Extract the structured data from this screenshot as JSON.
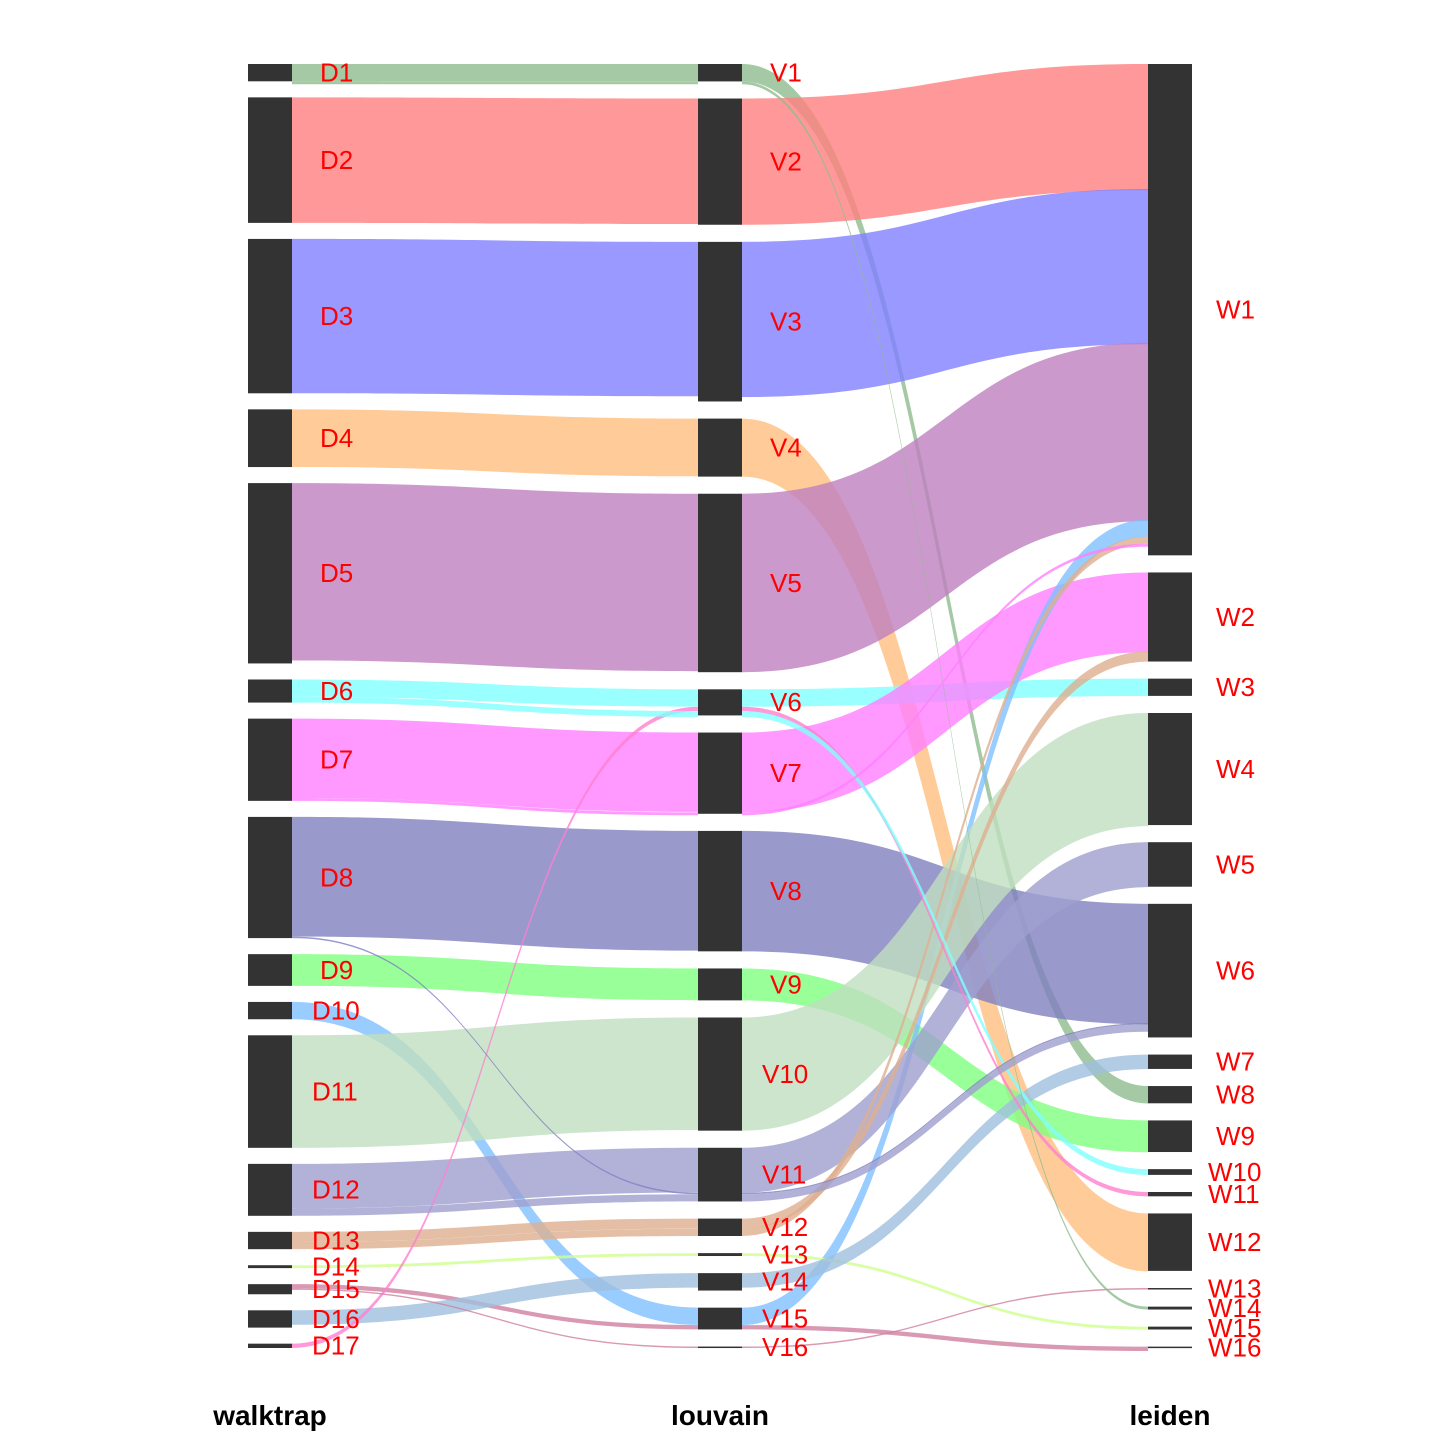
{
  "axes": [
    {
      "name": "walktrap"
    },
    {
      "name": "louvain"
    },
    {
      "name": "leiden"
    }
  ],
  "nodes": {
    "walktrap": [
      {
        "id": "D1",
        "size": 12
      },
      {
        "id": "D2",
        "size": 87
      },
      {
        "id": "D3",
        "size": 107
      },
      {
        "id": "D4",
        "size": 40
      },
      {
        "id": "D5",
        "size": 125
      },
      {
        "id": "D6",
        "size": 16
      },
      {
        "id": "D7",
        "size": 57
      },
      {
        "id": "D8",
        "size": 84
      },
      {
        "id": "D9",
        "size": 22
      },
      {
        "id": "D10",
        "size": 12
      },
      {
        "id": "D11",
        "size": 78
      },
      {
        "id": "D12",
        "size": 36
      },
      {
        "id": "D13",
        "size": 12
      },
      {
        "id": "D14",
        "size": 2
      },
      {
        "id": "D15",
        "size": 7
      },
      {
        "id": "D16",
        "size": 12
      },
      {
        "id": "D17",
        "size": 3
      }
    ],
    "louvain": [
      {
        "id": "V1",
        "size": 12
      },
      {
        "id": "V2",
        "size": 87
      },
      {
        "id": "V3",
        "size": 110
      },
      {
        "id": "V4",
        "size": 40
      },
      {
        "id": "V5",
        "size": 123
      },
      {
        "id": "V6",
        "size": 18
      },
      {
        "id": "V7",
        "size": 56
      },
      {
        "id": "V8",
        "size": 83
      },
      {
        "id": "V9",
        "size": 22
      },
      {
        "id": "V10",
        "size": 78
      },
      {
        "id": "V11",
        "size": 37
      },
      {
        "id": "V12",
        "size": 12
      },
      {
        "id": "V13",
        "size": 2
      },
      {
        "id": "V14",
        "size": 12
      },
      {
        "id": "V15",
        "size": 15
      },
      {
        "id": "V16",
        "size": 1
      }
    ],
    "leiden": [
      {
        "id": "W1",
        "size": 342
      },
      {
        "id": "W2",
        "size": 62
      },
      {
        "id": "W3",
        "size": 12
      },
      {
        "id": "W4",
        "size": 78
      },
      {
        "id": "W5",
        "size": 31
      },
      {
        "id": "W6",
        "size": 93
      },
      {
        "id": "W7",
        "size": 10
      },
      {
        "id": "W8",
        "size": 12
      },
      {
        "id": "W9",
        "size": 22
      },
      {
        "id": "W10",
        "size": 4
      },
      {
        "id": "W11",
        "size": 3
      },
      {
        "id": "W12",
        "size": 40
      },
      {
        "id": "W13",
        "size": 1
      },
      {
        "id": "W14",
        "size": 2
      },
      {
        "id": "W15",
        "size": 2
      },
      {
        "id": "W16",
        "size": 1
      }
    ]
  },
  "flows": [
    {
      "from": "D1",
      "mid": "V1",
      "to": "W8",
      "value": 12,
      "color": "#8fbc8f"
    },
    {
      "from": "D2",
      "mid": "V2",
      "to": "W1",
      "value": 87,
      "color": "#ff7f7f"
    },
    {
      "from": "D3",
      "mid": "V3",
      "to": "W1",
      "value": 107,
      "color": "#7f7fff"
    },
    {
      "from": "D4",
      "mid": "V4",
      "to": "W12",
      "value": 40,
      "color": "#ffbf7f"
    },
    {
      "from": "D5",
      "mid": "V5",
      "to": "W1",
      "value": 123,
      "color": "#bf7fbf"
    },
    {
      "from": "D6",
      "mid": "V6",
      "to": "W3",
      "value": 12,
      "color": "#7fffff"
    },
    {
      "from": "D7",
      "mid": "V7",
      "to": "W2",
      "value": 55,
      "color": "#ff7fff"
    },
    {
      "from": "D8",
      "mid": "V8",
      "to": "W6",
      "value": 83,
      "color": "#7f7fbf"
    },
    {
      "from": "D9",
      "mid": "V9",
      "to": "W9",
      "value": 22,
      "color": "#7fff7f"
    },
    {
      "from": "D10",
      "mid": "V15",
      "to": "W1",
      "value": 12,
      "color": "#7fbfff"
    },
    {
      "from": "D11",
      "mid": "V10",
      "to": "W4",
      "value": 78,
      "color": "#bfdfbf"
    },
    {
      "from": "D12",
      "mid": "V11",
      "to": "W5",
      "value": 31,
      "color": "#9f9fcf"
    },
    {
      "from": "D13",
      "mid": "V12",
      "to": "W2",
      "value": 7,
      "color": "#dfaf8f"
    },
    {
      "from": "D13",
      "mid": "V12",
      "to": "W1",
      "value": 5,
      "color": "#dfaf8f"
    },
    {
      "from": "D14",
      "mid": "V13",
      "to": "W15",
      "value": 2,
      "color": "#cfff8f"
    },
    {
      "from": "D15",
      "mid": "V15",
      "to": "W16",
      "value": 3,
      "color": "#cf7f9f"
    },
    {
      "from": "D16",
      "mid": "V14",
      "to": "W7",
      "value": 10,
      "color": "#9fbfdf"
    },
    {
      "from": "D17",
      "mid": "V6",
      "to": "W11",
      "value": 3,
      "color": "#ff7fcf"
    },
    {
      "from": "D6",
      "mid": "V6",
      "to": "W10",
      "value": 4,
      "color": "#7fffff"
    },
    {
      "from": "D8",
      "mid": "V11",
      "to": "W6",
      "value": 1,
      "color": "#7f7fbf"
    },
    {
      "from": "D12",
      "mid": "V11",
      "to": "W6",
      "value": 5,
      "color": "#9f9fcf"
    },
    {
      "from": "D15",
      "mid": "V16",
      "to": "W13",
      "value": 1,
      "color": "#cf7f9f"
    },
    {
      "from": "D1",
      "mid": "V1",
      "to": "W14",
      "value": 2,
      "color": "#8fbc8f"
    },
    {
      "from": "D7",
      "mid": "V7",
      "to": "W1",
      "value": 2,
      "color": "#ff7fff"
    }
  ]
}
